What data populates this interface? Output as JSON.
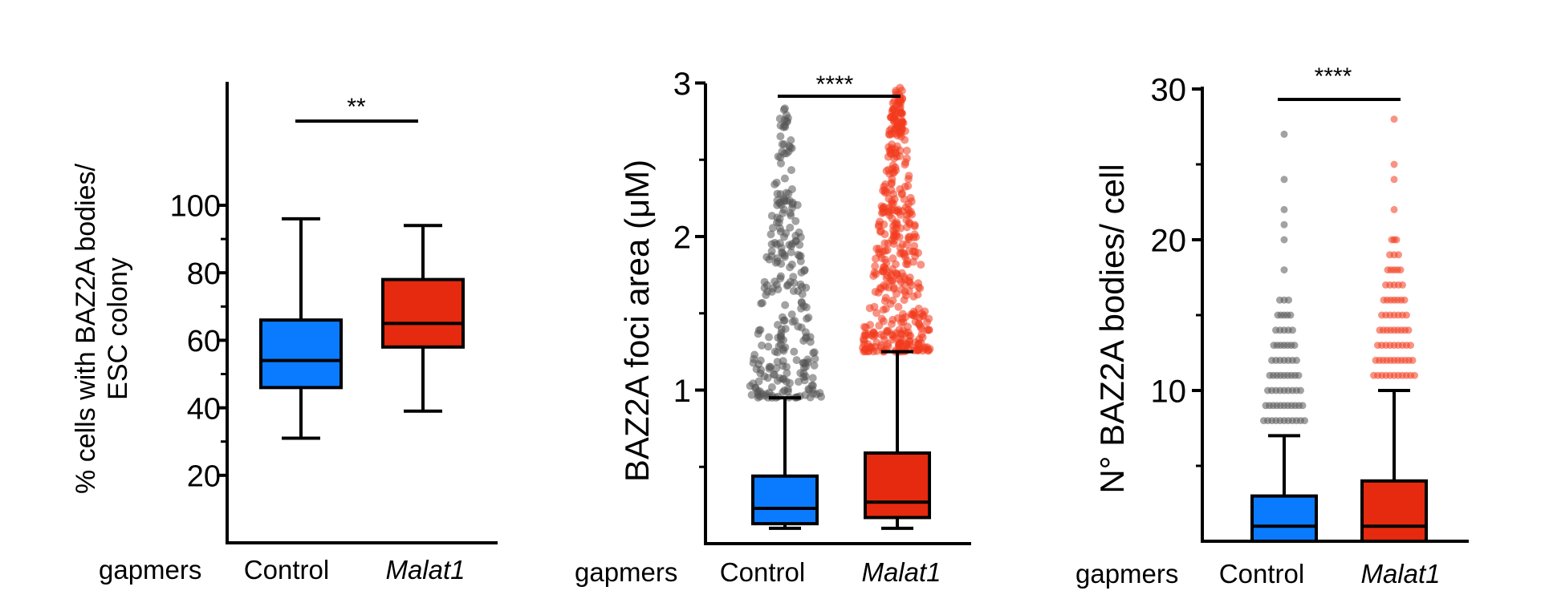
{
  "colors": {
    "control": "#0a7bff",
    "malat1": "#e52a0f",
    "control_points": "#555555",
    "malat1_points": "#f23b1e",
    "axis": "#000000"
  },
  "panels": [
    {
      "id": "pct",
      "ylabel_lines": [
        "% cells with BAZ2A bodies/",
        "ESC colony"
      ],
      "group_label": "gapmers",
      "categories": [
        "Control",
        "Malat1"
      ],
      "significance": "**",
      "yticks": [
        "20",
        "40",
        "60",
        "80",
        "100"
      ]
    },
    {
      "id": "area",
      "ylabel_lines": [
        "BAZ2A foci area (μM)"
      ],
      "group_label": "gapmers",
      "categories": [
        "Control",
        "Malat1"
      ],
      "significance": "****",
      "yticks": [
        "1",
        "2",
        "3"
      ]
    },
    {
      "id": "count",
      "ylabel_lines": [
        "N° BAZ2A bodies/ cell"
      ],
      "group_label": "gapmers",
      "categories": [
        "Control",
        "Malat1"
      ],
      "significance": "****",
      "yticks": [
        "10",
        "20",
        "30"
      ]
    }
  ],
  "chart_data": [
    {
      "type": "box",
      "ylabel": "% cells with BAZ2A bodies/ ESC colony",
      "xlabel": "gapmers",
      "categories": [
        "Control",
        "Malat1"
      ],
      "ylim": [
        0,
        110
      ],
      "yticks": [
        20,
        40,
        60,
        80,
        100
      ],
      "boxes": [
        {
          "name": "Control",
          "min": 31,
          "q1": 46,
          "median": 54,
          "q3": 66,
          "max": 96
        },
        {
          "name": "Malat1",
          "min": 39,
          "q1": 58,
          "median": 65,
          "q3": 78,
          "max": 94
        }
      ],
      "significance": "**"
    },
    {
      "type": "box",
      "ylabel": "BAZ2A foci area (μM)",
      "xlabel": "gapmers",
      "categories": [
        "Control",
        "Malat1"
      ],
      "ylim": [
        0,
        3
      ],
      "yticks": [
        1,
        2,
        3
      ],
      "boxes": [
        {
          "name": "Control",
          "min": 0.1,
          "q1": 0.13,
          "median": 0.23,
          "q3": 0.44,
          "max": 0.95,
          "outlier_range": [
            0.95,
            2.85
          ]
        },
        {
          "name": "Malat1",
          "min": 0.1,
          "q1": 0.17,
          "median": 0.27,
          "q3": 0.59,
          "max": 1.25,
          "outlier_range": [
            1.25,
            2.98
          ]
        }
      ],
      "significance": "****"
    },
    {
      "type": "box",
      "ylabel": "N° BAZ2A bodies/ cell",
      "xlabel": "gapmers",
      "categories": [
        "Control",
        "Malat1"
      ],
      "ylim": [
        0,
        30
      ],
      "yticks": [
        10,
        20,
        30
      ],
      "boxes": [
        {
          "name": "Control",
          "min": 0,
          "q1": 0,
          "median": 1,
          "q3": 3,
          "max": 7,
          "outliers": [
            8,
            9,
            10,
            11,
            12,
            13,
            14,
            15,
            16,
            18,
            20,
            21,
            22,
            24,
            27
          ]
        },
        {
          "name": "Malat1",
          "min": 0,
          "q1": 0,
          "median": 1,
          "q3": 4,
          "max": 10,
          "outliers": [
            11,
            12,
            13,
            14,
            15,
            16,
            17,
            18,
            19,
            20,
            22,
            24,
            25,
            28
          ]
        }
      ],
      "significance": "****"
    }
  ]
}
